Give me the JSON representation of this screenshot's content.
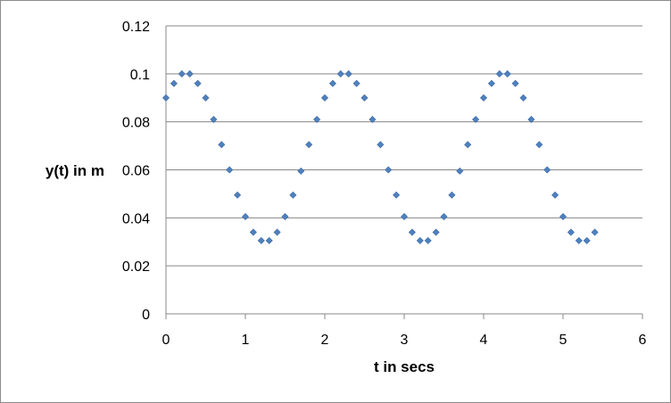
{
  "chart_data": {
    "type": "scatter",
    "title": "",
    "xlabel": "t in secs",
    "ylabel": "y(t) in m",
    "xlim": [
      0,
      6
    ],
    "ylim": [
      0,
      0.12
    ],
    "xticks": [
      0,
      1,
      2,
      3,
      4,
      5,
      6
    ],
    "xtick_labels": [
      "0",
      "1",
      "2",
      "3",
      "4",
      "5",
      "6"
    ],
    "yticks": [
      0,
      0.02,
      0.04,
      0.06,
      0.08,
      0.1,
      0.12
    ],
    "ytick_labels": [
      "0",
      "0.02",
      "0.04",
      "0.06",
      "0.08",
      "0.1",
      "0.12"
    ],
    "grid": "horizontal",
    "legend": "none",
    "marker_color": "#4f81bd",
    "marker_shape": "diamond",
    "x": [
      0,
      0.1,
      0.2,
      0.3,
      0.4,
      0.5,
      0.6,
      0.7,
      0.8,
      0.9,
      1.0,
      1.1,
      1.2,
      1.3,
      1.4,
      1.5,
      1.6,
      1.7,
      1.8,
      1.9,
      2.0,
      2.1,
      2.2,
      2.3,
      2.4,
      2.5,
      2.6,
      2.7,
      2.8,
      2.9,
      3.0,
      3.1,
      3.2,
      3.3,
      3.4,
      3.5,
      3.6,
      3.7,
      3.8,
      3.9,
      4.0,
      4.1,
      4.2,
      4.3,
      4.4,
      4.5,
      4.6,
      4.7,
      4.8,
      4.9,
      5.0,
      5.1,
      5.2,
      5.3,
      5.4
    ],
    "y": [
      0.09,
      0.096,
      0.1,
      0.1,
      0.096,
      0.09,
      0.081,
      0.0705,
      0.06,
      0.0495,
      0.0405,
      0.034,
      0.0305,
      0.0305,
      0.034,
      0.0405,
      0.0495,
      0.0595,
      0.0705,
      0.081,
      0.09,
      0.096,
      0.1,
      0.1,
      0.096,
      0.09,
      0.081,
      0.0705,
      0.06,
      0.0495,
      0.0405,
      0.034,
      0.0305,
      0.0305,
      0.034,
      0.0405,
      0.0495,
      0.0595,
      0.0705,
      0.081,
      0.09,
      0.096,
      0.1,
      0.1,
      0.096,
      0.09,
      0.081,
      0.0705,
      0.06,
      0.0495,
      0.0405,
      0.034,
      0.0305,
      0.0305,
      0.034
    ]
  }
}
